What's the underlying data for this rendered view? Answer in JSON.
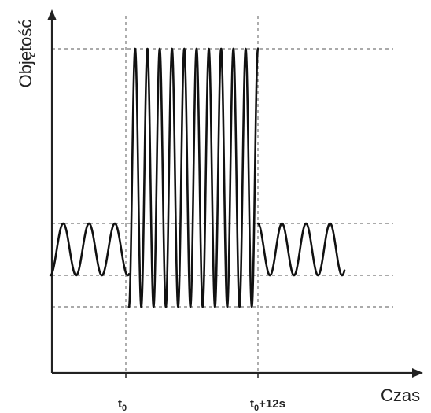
{
  "axes": {
    "y_label": "Objętość",
    "x_label": "Czas"
  },
  "ticks": {
    "t0": {
      "base": "t",
      "sub": "0"
    },
    "t0_plus": {
      "base": "t",
      "sub": "0",
      "suffix": "+12s"
    }
  },
  "colors": {
    "curve": "#111111",
    "axis": "#222222",
    "guide": "#777777"
  }
}
